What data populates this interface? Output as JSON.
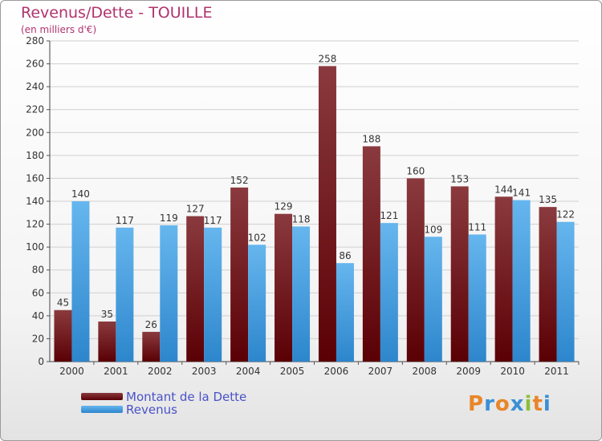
{
  "title": "Revenus/Dette - TOUILLE",
  "subtitle": "(en milliers d'€)",
  "legend": [
    {
      "label": "Montant de la Dette",
      "color": "#6b0f14"
    },
    {
      "label": "Revenus",
      "color": "#3d9de0"
    }
  ],
  "logo": {
    "letters": [
      "P",
      "r",
      "o",
      "x",
      "i",
      "t",
      "i"
    ],
    "colors": [
      "#e8862a",
      "#3a8fd6",
      "#e8862a",
      "#3a8fd6",
      "#8cbf3a",
      "#e8862a",
      "#3a8fd6"
    ]
  },
  "chart_data": {
    "type": "bar",
    "title": "Revenus/Dette - TOUILLE",
    "subtitle": "(en milliers d'€)",
    "categories": [
      "2000",
      "2001",
      "2002",
      "2003",
      "2004",
      "2005",
      "2006",
      "2007",
      "2008",
      "2009",
      "2010",
      "2011"
    ],
    "series": [
      {
        "name": "Montant de la Dette",
        "color": "#6b0f14",
        "values": [
          45,
          35,
          26,
          127,
          152,
          129,
          258,
          188,
          160,
          153,
          144,
          135
        ]
      },
      {
        "name": "Revenus",
        "color": "#3d9de0",
        "values": [
          140,
          117,
          119,
          117,
          102,
          118,
          86,
          121,
          109,
          111,
          141,
          122
        ]
      }
    ],
    "ylim": [
      0,
      280
    ],
    "yticks": [
      0,
      20,
      40,
      60,
      80,
      100,
      120,
      140,
      160,
      180,
      200,
      220,
      240,
      260,
      280
    ],
    "grid": true,
    "legend_position": "bottom-left"
  }
}
